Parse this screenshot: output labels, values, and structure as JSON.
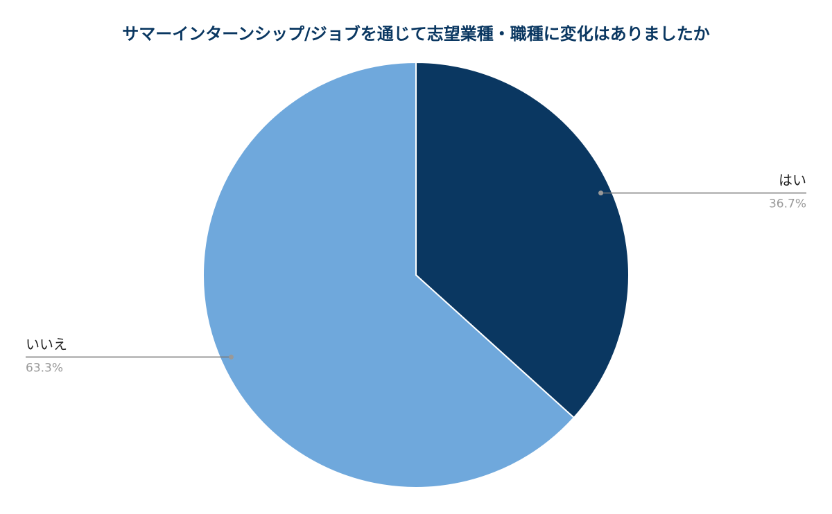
{
  "chart_data": {
    "type": "pie",
    "title": "サマーインターンシップ/ジョブを通じて志望業種・職種に変化はありましたか",
    "categories": [
      "はい",
      "いいえ"
    ],
    "values": [
      36.7,
      63.3
    ],
    "value_labels": [
      "36.7%",
      "63.3%"
    ],
    "colors": [
      "#0a3761",
      "#6fa8dc"
    ]
  }
}
